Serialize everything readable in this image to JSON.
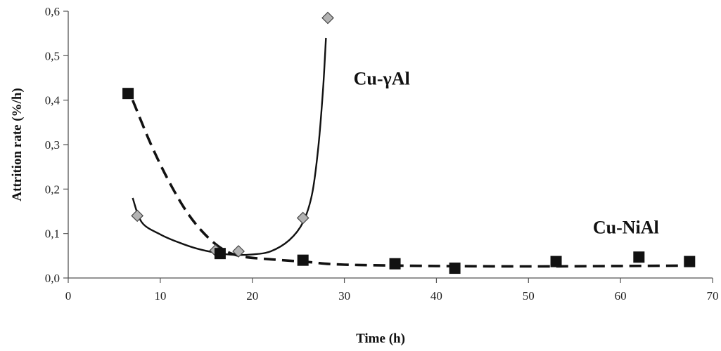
{
  "chart_data": {
    "type": "scatter",
    "xlabel": "Time (h)",
    "ylabel": "Attrition rate (%/h)",
    "xlim": [
      0,
      70
    ],
    "ylim": [
      0,
      0.6
    ],
    "x_ticks": [
      "0",
      "10",
      "20",
      "30",
      "40",
      "50",
      "60",
      "70"
    ],
    "y_ticks": [
      "0,0",
      "0,1",
      "0,2",
      "0,3",
      "0,4",
      "0,5",
      "0,6"
    ],
    "grid": false,
    "legend": "none",
    "series": [
      {
        "name": "Cu-γAl",
        "marker": "diamond",
        "marker_color": "#b3b3b3",
        "line_style": "solid",
        "points": [
          {
            "x": 7.5,
            "y": 0.14
          },
          {
            "x": 16,
            "y": 0.062
          },
          {
            "x": 18.5,
            "y": 0.06
          },
          {
            "x": 25.5,
            "y": 0.135
          },
          {
            "x": 28.2,
            "y": 0.585
          }
        ],
        "trend": [
          {
            "x": 7.0,
            "y": 0.18
          },
          {
            "x": 8.0,
            "y": 0.125
          },
          {
            "x": 10.0,
            "y": 0.098
          },
          {
            "x": 12.0,
            "y": 0.08
          },
          {
            "x": 14.0,
            "y": 0.066
          },
          {
            "x": 16.0,
            "y": 0.057
          },
          {
            "x": 18.0,
            "y": 0.052
          },
          {
            "x": 20.0,
            "y": 0.053
          },
          {
            "x": 22.0,
            "y": 0.06
          },
          {
            "x": 24.0,
            "y": 0.085
          },
          {
            "x": 25.5,
            "y": 0.125
          },
          {
            "x": 26.5,
            "y": 0.19
          },
          {
            "x": 27.2,
            "y": 0.3
          },
          {
            "x": 27.7,
            "y": 0.43
          },
          {
            "x": 28.0,
            "y": 0.54
          }
        ]
      },
      {
        "name": "Cu-NiAl",
        "marker": "square",
        "marker_color": "#111111",
        "line_style": "dashed",
        "points": [
          {
            "x": 6.5,
            "y": 0.415
          },
          {
            "x": 16.5,
            "y": 0.055
          },
          {
            "x": 25.5,
            "y": 0.04
          },
          {
            "x": 35.5,
            "y": 0.032
          },
          {
            "x": 42,
            "y": 0.022
          },
          {
            "x": 53,
            "y": 0.037
          },
          {
            "x": 62,
            "y": 0.047
          },
          {
            "x": 67.5,
            "y": 0.037
          }
        ],
        "trend": [
          {
            "x": 7.0,
            "y": 0.4
          },
          {
            "x": 9.0,
            "y": 0.3
          },
          {
            "x": 11.0,
            "y": 0.215
          },
          {
            "x": 13.0,
            "y": 0.145
          },
          {
            "x": 15.0,
            "y": 0.095
          },
          {
            "x": 17.0,
            "y": 0.062
          },
          {
            "x": 19.0,
            "y": 0.048
          },
          {
            "x": 22.0,
            "y": 0.042
          },
          {
            "x": 26.0,
            "y": 0.036
          },
          {
            "x": 30.0,
            "y": 0.03
          },
          {
            "x": 40.0,
            "y": 0.027
          },
          {
            "x": 50.0,
            "y": 0.026
          },
          {
            "x": 60.0,
            "y": 0.027
          },
          {
            "x": 68.0,
            "y": 0.028
          }
        ]
      }
    ],
    "annotations": [
      {
        "text": "Cu-γAl",
        "x": 31,
        "y": 0.435
      },
      {
        "text": "Cu-NiAl",
        "x": 57,
        "y": 0.1
      }
    ]
  }
}
